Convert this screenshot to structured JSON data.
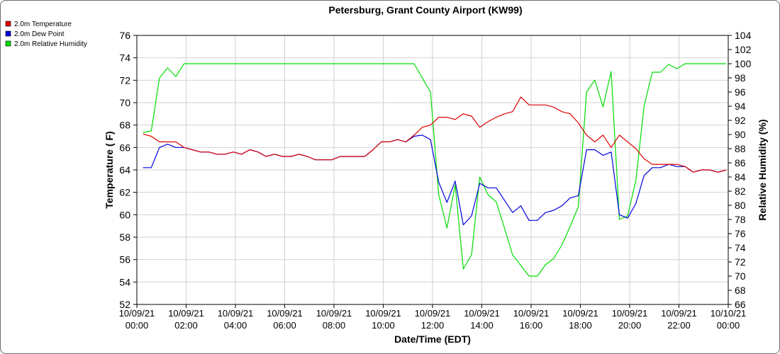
{
  "chart_data": {
    "type": "line",
    "title": "Petersburg, Grant County Airport (KW99)",
    "xlabel": "Date/Time (EDT)",
    "ylabel": "Temperature ( F)",
    "y2label": "Relative Humidity (%)",
    "xlim": [
      "10/09/21 00:00",
      "10/10/21 00:00"
    ],
    "ylim": [
      52,
      76
    ],
    "y2lim": [
      66,
      104
    ],
    "x_tick_labels": [
      {
        "date": "10/09/21",
        "time": "00:00"
      },
      {
        "date": "10/09/21",
        "time": "02:00"
      },
      {
        "date": "10/09/21",
        "time": "04:00"
      },
      {
        "date": "10/09/21",
        "time": "06:00"
      },
      {
        "date": "10/09/21",
        "time": "08:00"
      },
      {
        "date": "10/09/21",
        "time": "10:00"
      },
      {
        "date": "10/09/21",
        "time": "12:00"
      },
      {
        "date": "10/09/21",
        "time": "14:00"
      },
      {
        "date": "10/09/21",
        "time": "16:00"
      },
      {
        "date": "10/09/21",
        "time": "18:00"
      },
      {
        "date": "10/09/21",
        "time": "20:00"
      },
      {
        "date": "10/09/21",
        "time": "22:00"
      },
      {
        "date": "10/10/21",
        "time": "00:00"
      }
    ],
    "y_ticks": [
      "52",
      "54",
      "56",
      "58",
      "60",
      "62",
      "64",
      "66",
      "68",
      "70",
      "72",
      "74",
      "76"
    ],
    "y2_ticks": [
      "66",
      "68",
      "70",
      "72",
      "74",
      "76",
      "78",
      "80",
      "82",
      "84",
      "86",
      "88",
      "90",
      "92",
      "94",
      "96",
      "98",
      "100",
      "102",
      "104"
    ],
    "grid": true,
    "legend_position": "top-left",
    "series": [
      {
        "name": "2.0m Temperature",
        "color": "#dd0000",
        "axis": "left",
        "x": [
          "10/09/21 00:15",
          "10/09/21 00:35",
          "10/09/21 00:55",
          "10/09/21 01:15",
          "10/09/21 01:35",
          "10/09/21 01:55",
          "10/09/21 02:15",
          "10/09/21 02:35",
          "10/09/21 02:55",
          "10/09/21 03:15",
          "10/09/21 03:35",
          "10/09/21 03:55",
          "10/09/21 04:15",
          "10/09/21 04:35",
          "10/09/21 04:55",
          "10/09/21 05:15",
          "10/09/21 05:35",
          "10/09/21 05:55",
          "10/09/21 06:15",
          "10/09/21 06:35",
          "10/09/21 06:55",
          "10/09/21 07:15",
          "10/09/21 07:35",
          "10/09/21 07:55",
          "10/09/21 08:15",
          "10/09/21 08:35",
          "10/09/21 08:55",
          "10/09/21 09:15",
          "10/09/21 09:35",
          "10/09/21 09:55",
          "10/09/21 10:15",
          "10/09/21 10:35",
          "10/09/21 10:55",
          "10/09/21 11:15",
          "10/09/21 11:35",
          "10/09/21 11:55",
          "10/09/21 12:15",
          "10/09/21 12:35",
          "10/09/21 12:55",
          "10/09/21 13:15",
          "10/09/21 13:35",
          "10/09/21 13:55",
          "10/09/21 14:15",
          "10/09/21 14:35",
          "10/09/21 14:55",
          "10/09/21 15:15",
          "10/09/21 15:35",
          "10/09/21 15:55",
          "10/09/21 16:15",
          "10/09/21 16:35",
          "10/09/21 16:55",
          "10/09/21 17:15",
          "10/09/21 17:35",
          "10/09/21 17:55",
          "10/09/21 18:15",
          "10/09/21 18:35",
          "10/09/21 18:55",
          "10/09/21 19:15",
          "10/09/21 19:35",
          "10/09/21 19:55",
          "10/09/21 20:15",
          "10/09/21 20:35",
          "10/09/21 20:55",
          "10/09/21 21:15",
          "10/09/21 21:35",
          "10/09/21 21:55",
          "10/09/21 22:15",
          "10/09/21 22:35",
          "10/09/21 22:55",
          "10/09/21 23:15",
          "10/09/21 23:35",
          "10/09/21 23:55"
        ],
        "y": [
          67.2,
          67.0,
          66.5,
          66.5,
          66.5,
          66.0,
          65.8,
          65.6,
          65.6,
          65.4,
          65.4,
          65.6,
          65.4,
          65.8,
          65.6,
          65.2,
          65.4,
          65.2,
          65.2,
          65.4,
          65.2,
          64.9,
          64.9,
          64.9,
          65.2,
          65.2,
          65.2,
          65.2,
          65.8,
          66.5,
          66.5,
          66.7,
          66.5,
          67.1,
          67.8,
          68.0,
          68.7,
          68.7,
          68.5,
          69.0,
          68.8,
          67.8,
          68.3,
          68.7,
          69.0,
          69.2,
          70.5,
          69.8,
          69.8,
          69.8,
          69.6,
          69.2,
          69.0,
          68.2,
          67.1,
          66.5,
          67.1,
          66.0,
          67.1,
          66.5,
          65.9,
          65.0,
          64.5,
          64.5,
          64.5,
          64.5,
          64.3,
          63.8,
          64.0,
          64.0,
          63.8,
          64.0
        ]
      },
      {
        "name": "2.0m Dew Point",
        "color": "#0000dd",
        "axis": "left",
        "x": [
          "10/09/21 00:15",
          "10/09/21 00:35",
          "10/09/21 00:55",
          "10/09/21 01:15",
          "10/09/21 01:35",
          "10/09/21 01:55",
          "10/09/21 02:15",
          "10/09/21 02:35",
          "10/09/21 02:55",
          "10/09/21 03:15",
          "10/09/21 03:35",
          "10/09/21 03:55",
          "10/09/21 04:15",
          "10/09/21 04:35",
          "10/09/21 04:55",
          "10/09/21 05:15",
          "10/09/21 05:35",
          "10/09/21 05:55",
          "10/09/21 06:15",
          "10/09/21 06:35",
          "10/09/21 06:55",
          "10/09/21 07:15",
          "10/09/21 07:35",
          "10/09/21 07:55",
          "10/09/21 08:15",
          "10/09/21 08:35",
          "10/09/21 08:55",
          "10/09/21 09:15",
          "10/09/21 09:35",
          "10/09/21 09:55",
          "10/09/21 10:15",
          "10/09/21 10:35",
          "10/09/21 10:55",
          "10/09/21 11:15",
          "10/09/21 11:35",
          "10/09/21 11:55",
          "10/09/21 12:15",
          "10/09/21 12:35",
          "10/09/21 12:55",
          "10/09/21 13:15",
          "10/09/21 13:35",
          "10/09/21 13:55",
          "10/09/21 14:15",
          "10/09/21 14:35",
          "10/09/21 14:55",
          "10/09/21 15:15",
          "10/09/21 15:35",
          "10/09/21 15:55",
          "10/09/21 16:15",
          "10/09/21 16:35",
          "10/09/21 16:55",
          "10/09/21 17:15",
          "10/09/21 17:35",
          "10/09/21 17:55",
          "10/09/21 18:15",
          "10/09/21 18:35",
          "10/09/21 18:55",
          "10/09/21 19:15",
          "10/09/21 19:35",
          "10/09/21 19:55",
          "10/09/21 20:15",
          "10/09/21 20:35",
          "10/09/21 20:55",
          "10/09/21 21:15",
          "10/09/21 21:35",
          "10/09/21 21:55",
          "10/09/21 22:15",
          "10/09/21 22:35",
          "10/09/21 22:55",
          "10/09/21 23:15",
          "10/09/21 23:35",
          "10/09/21 23:55"
        ],
        "y": [
          64.2,
          64.2,
          66.0,
          66.3,
          66.0,
          66.0,
          65.8,
          65.6,
          65.6,
          65.4,
          65.4,
          65.6,
          65.4,
          65.8,
          65.6,
          65.2,
          65.4,
          65.2,
          65.2,
          65.4,
          65.2,
          64.9,
          64.9,
          64.9,
          65.2,
          65.2,
          65.2,
          65.2,
          65.8,
          66.5,
          66.5,
          66.7,
          66.5,
          67.0,
          67.1,
          66.7,
          62.9,
          61.1,
          63.0,
          59.1,
          59.9,
          62.8,
          62.4,
          62.4,
          61.3,
          60.2,
          60.8,
          59.5,
          59.5,
          60.2,
          60.4,
          60.8,
          61.5,
          61.7,
          65.8,
          65.8,
          65.3,
          65.6,
          60.0,
          59.7,
          61.0,
          63.5,
          64.2,
          64.2,
          64.5,
          64.3,
          64.3,
          63.8,
          64.0,
          64.0,
          63.8,
          64.0
        ]
      },
      {
        "name": "2.0m Relative Humidity",
        "color": "#00dd00",
        "axis": "right",
        "x": [
          "10/09/21 00:15",
          "10/09/21 00:35",
          "10/09/21 00:55",
          "10/09/21 01:15",
          "10/09/21 01:35",
          "10/09/21 01:55",
          "10/09/21 11:15",
          "10/09/21 11:55",
          "10/09/21 12:15",
          "10/09/21 12:35",
          "10/09/21 12:55",
          "10/09/21 13:15",
          "10/09/21 13:35",
          "10/09/21 13:55",
          "10/09/21 14:15",
          "10/09/21 14:35",
          "10/09/21 14:55",
          "10/09/21 15:15",
          "10/09/21 15:35",
          "10/09/21 15:55",
          "10/09/21 16:15",
          "10/09/21 16:35",
          "10/09/21 16:55",
          "10/09/21 17:15",
          "10/09/21 17:35",
          "10/09/21 17:55",
          "10/09/21 18:15",
          "10/09/21 18:35",
          "10/09/21 18:55",
          "10/09/21 19:15",
          "10/09/21 19:35",
          "10/09/21 19:55",
          "10/09/21 20:15",
          "10/09/21 20:35",
          "10/09/21 20:55",
          "10/09/21 21:15",
          "10/09/21 21:35",
          "10/09/21 21:55",
          "10/09/21 22:15",
          "10/09/21 22:35",
          "10/09/21 22:55",
          "10/09/21 23:15",
          "10/09/21 23:35",
          "10/09/21 23:55"
        ],
        "y": [
          90.3,
          90.5,
          98.0,
          99.4,
          98.2,
          100.0,
          100.0,
          96.0,
          81.5,
          76.8,
          82.9,
          71.0,
          73.0,
          84.0,
          81.5,
          80.5,
          76.8,
          73.0,
          71.5,
          70.0,
          70.0,
          71.6,
          72.5,
          74.4,
          77.0,
          79.8,
          96.0,
          97.7,
          93.9,
          98.9,
          78.0,
          78.5,
          83.5,
          94.0,
          98.8,
          98.8,
          99.9,
          99.3,
          100.0,
          100.0,
          100.0,
          100.0,
          100.0,
          100.0
        ]
      }
    ]
  }
}
